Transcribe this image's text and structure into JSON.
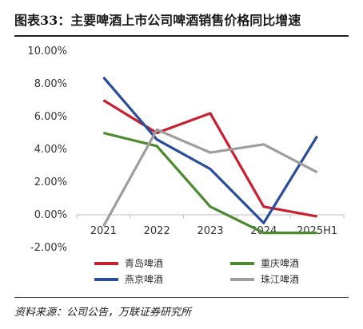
{
  "title": "图表33：主要啤酒上市公司啤酒销售价格同比增速",
  "source": "资料来源：公司公告，万联证券研究所",
  "chart_data": {
    "type": "line",
    "title": "主要啤酒上市公司啤酒销售价格同比增速",
    "xlabel": "",
    "ylabel": "",
    "categories": [
      "2021",
      "2022",
      "2023",
      "2024",
      "2025H1"
    ],
    "yticks": [
      "10.00%",
      "8.00%",
      "6.00%",
      "4.00%",
      "2.00%",
      "0.00%",
      "-2.00%"
    ],
    "ylim": [
      -2,
      10
    ],
    "grid": false,
    "legend_position": "bottom",
    "series": [
      {
        "name": "青岛啤酒",
        "color": "#c8202f",
        "values": [
          7.0,
          5.0,
          6.2,
          0.5,
          -0.1
        ]
      },
      {
        "name": "重庆啤酒",
        "color": "#4b8b2f",
        "values": [
          5.0,
          4.2,
          0.5,
          -1.1,
          -1.1
        ]
      },
      {
        "name": "燕京啤酒",
        "color": "#2a4d9b",
        "values": [
          8.4,
          4.6,
          2.8,
          -0.5,
          4.8
        ]
      },
      {
        "name": "珠江啤酒",
        "color": "#9e9e9e",
        "values": [
          -0.7,
          5.2,
          3.8,
          4.3,
          2.6
        ]
      }
    ]
  }
}
